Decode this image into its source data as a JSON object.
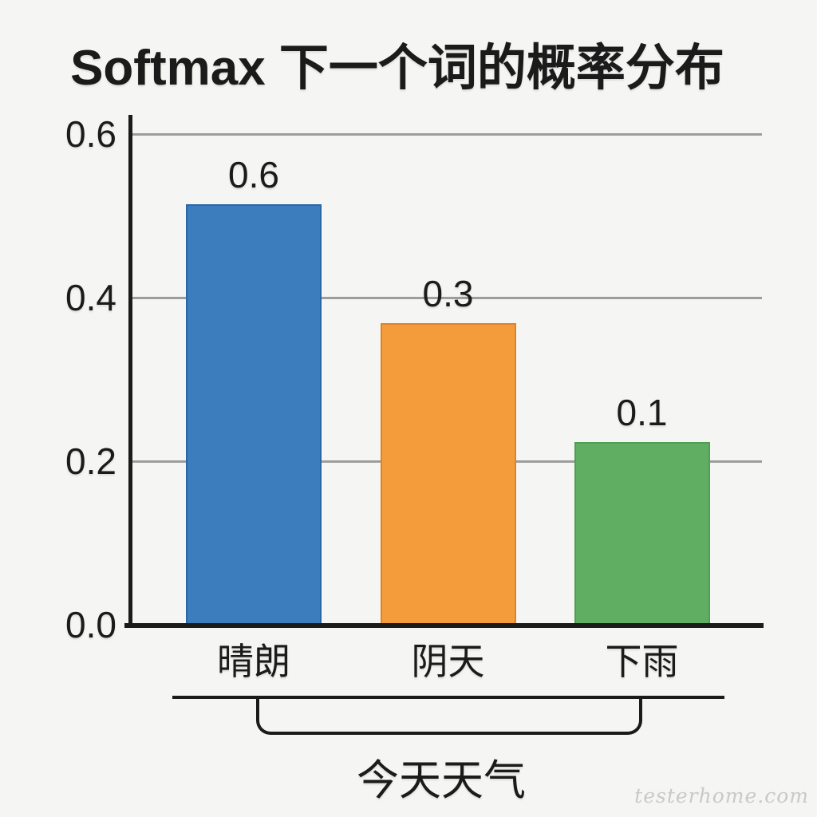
{
  "page": {
    "watermark": "testerhome.com"
  },
  "chart_data": {
    "type": "bar",
    "title": "Softmax 下一个词的概率分布",
    "categories": [
      "晴朗",
      "阴天",
      "下雨"
    ],
    "values": [
      0.6,
      0.3,
      0.1
    ],
    "bar_labels": [
      "0.6",
      "0.3",
      "0.1"
    ],
    "rendered_fractions": [
      0.514,
      0.369,
      0.223
    ],
    "bar_colors": [
      "#3c7ebd",
      "#f49c3b",
      "#5fae62"
    ],
    "bar_edge_colors": [
      "#2a66a5",
      "#da8628",
      "#4f9e54"
    ],
    "y_tick_labels": [
      "0.0",
      "0.2",
      "0.4",
      "0.6"
    ],
    "y_ticks": [
      0.0,
      0.2,
      0.4,
      0.6
    ],
    "ylim": [
      0,
      0.62
    ],
    "grid": true,
    "legend": false,
    "xlabel": "",
    "ylabel": "",
    "group_annotation": {
      "label": "今天天气",
      "spans_categories": [
        "晴朗",
        "阴天",
        "下雨"
      ]
    }
  },
  "colors": {
    "background": "#f5f5f3",
    "axis": "#1b1b1b",
    "gridline": "#9d9d9d",
    "text": "#1b1b1b",
    "watermark": "#cac9c5"
  }
}
